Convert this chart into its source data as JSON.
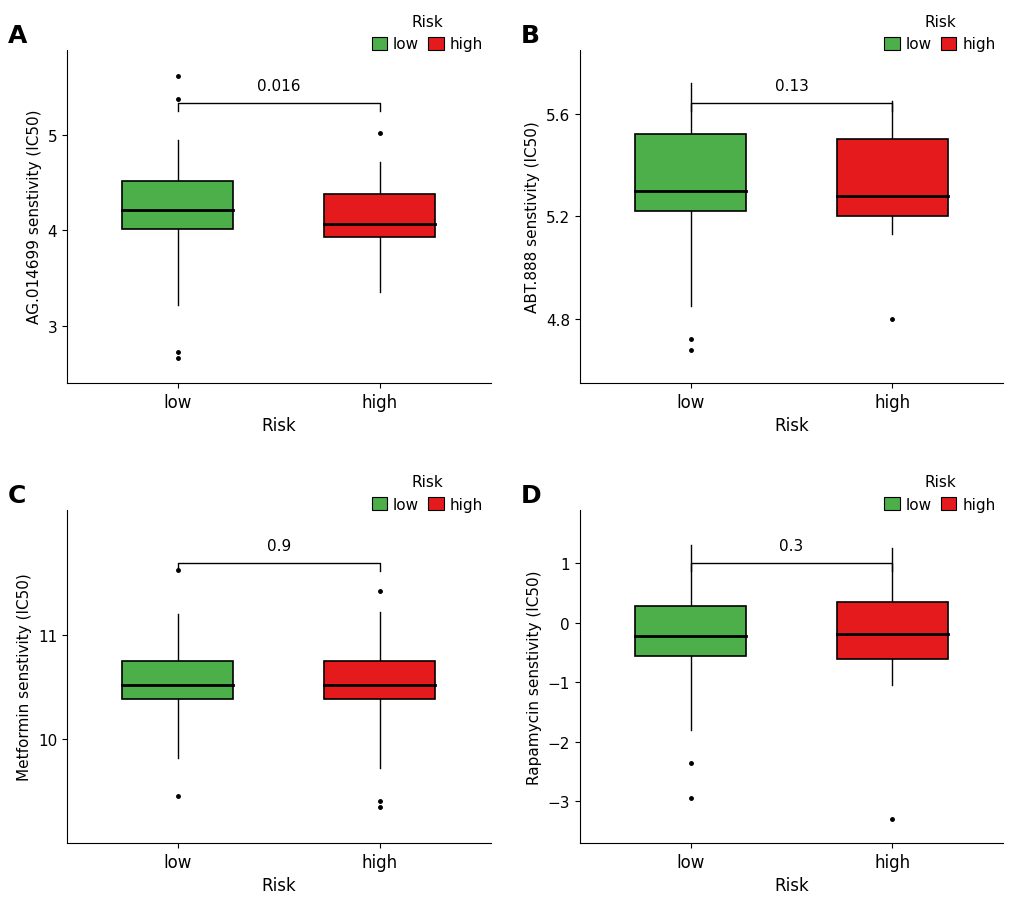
{
  "panels": [
    {
      "label": "A",
      "ylabel": "AG.014699 senstivity (IC50)",
      "xlabel": "Risk",
      "pvalue": "0.016",
      "low": {
        "whisker_low": 3.22,
        "q1": 4.02,
        "median": 4.22,
        "q3": 4.52,
        "whisker_high": 4.95,
        "outliers_low": [
          2.72,
          2.66
        ],
        "outliers_high": [
          5.62,
          5.38
        ]
      },
      "high": {
        "whisker_low": 3.35,
        "q1": 3.93,
        "median": 4.07,
        "q3": 4.38,
        "whisker_high": 4.72,
        "outliers_low": [],
        "outliers_high": [
          5.02
        ]
      },
      "ylim": [
        2.4,
        5.9
      ],
      "yticks": [
        3.0,
        4.0,
        5.0
      ]
    },
    {
      "label": "B",
      "ylabel": "ABT.888 senstivity (IC50)",
      "xlabel": "Risk",
      "pvalue": "0.13",
      "low": {
        "whisker_low": 4.85,
        "q1": 5.22,
        "median": 5.3,
        "q3": 5.52,
        "whisker_high": 5.72,
        "outliers_low": [
          4.72,
          4.68
        ],
        "outliers_high": []
      },
      "high": {
        "whisker_low": 5.13,
        "q1": 5.2,
        "median": 5.28,
        "q3": 5.5,
        "whisker_high": 5.65,
        "outliers_low": [
          4.8
        ],
        "outliers_high": []
      },
      "ylim": [
        4.55,
        5.85
      ],
      "yticks": [
        4.8,
        5.2,
        5.6
      ]
    },
    {
      "label": "C",
      "ylabel": "Metformin senstivity (IC50)",
      "xlabel": "Risk",
      "pvalue": "0.9",
      "low": {
        "whisker_low": 9.82,
        "q1": 10.38,
        "median": 10.52,
        "q3": 10.75,
        "whisker_high": 11.2,
        "outliers_low": [
          9.45
        ],
        "outliers_high": [
          11.62
        ]
      },
      "high": {
        "whisker_low": 9.72,
        "q1": 10.38,
        "median": 10.52,
        "q3": 10.75,
        "whisker_high": 11.22,
        "outliers_low": [
          9.4,
          9.35
        ],
        "outliers_high": [
          11.42
        ]
      },
      "ylim": [
        9.0,
        12.2
      ],
      "yticks": [
        10.0,
        11.0
      ]
    },
    {
      "label": "D",
      "ylabel": "Rapamycin senstivity (IC50)",
      "xlabel": "Risk",
      "pvalue": "0.3",
      "low": {
        "whisker_low": -1.8,
        "q1": -0.55,
        "median": -0.22,
        "q3": 0.28,
        "whisker_high": 1.3,
        "outliers_low": [
          -2.35,
          -2.95
        ],
        "outliers_high": []
      },
      "high": {
        "whisker_low": -1.05,
        "q1": -0.6,
        "median": -0.18,
        "q3": 0.35,
        "whisker_high": 1.25,
        "outliers_low": [
          -3.3
        ],
        "outliers_high": []
      },
      "ylim": [
        -3.7,
        1.9
      ],
      "yticks": [
        -3.0,
        -2.0,
        -1.0,
        0.0,
        1.0
      ]
    }
  ],
  "green_color": "#4DAF4A",
  "red_color": "#E41A1C",
  "box_width": 0.55,
  "background_color": "#FFFFFF",
  "panel_bg": "#FFFFFF"
}
